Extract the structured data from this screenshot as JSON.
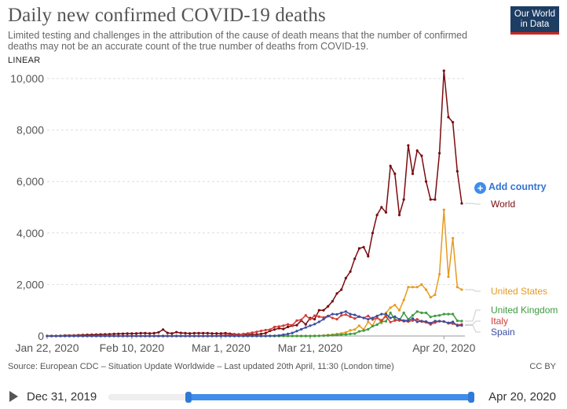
{
  "header": {
    "title": "Daily new confirmed COVID-19 deaths",
    "subtitle": "Limited testing and challenges in the attribution of the cause of death means that the number of confirmed deaths may not be an accurate count of the true number of deaths from COVID-19.",
    "scale_toggle": "LINEAR",
    "logo_line1": "Our World",
    "logo_line2": "in Data"
  },
  "controls": {
    "add_country": "Add country",
    "add_icon": "plus-circle-icon",
    "timeline_start": "Dec 31, 2019",
    "timeline_end": "Apr 20, 2020",
    "timeline_range_start": 0.22,
    "timeline_range_end": 1.0
  },
  "footer": {
    "source": "Source: European CDC – Situation Update Worldwide – Last updated 20th April, 11:30 (London time)",
    "license": "CC BY"
  },
  "chart_data": {
    "type": "line",
    "x_start": "2020-01-22",
    "x_end": "2020-04-20",
    "x_ticks": [
      "Jan 22, 2020",
      "Feb 10, 2020",
      "Mar 1, 2020",
      "Mar 21, 2020",
      "Apr 20, 2020"
    ],
    "x_tick_days": [
      0,
      19,
      39,
      59,
      89
    ],
    "ylim": [
      0,
      10500
    ],
    "y_ticks": [
      0,
      2000,
      4000,
      6000,
      8000,
      10000
    ],
    "y_tick_labels": [
      "0",
      "2,000",
      "4,000",
      "6,000",
      "8,000",
      "10,000"
    ],
    "grid": "horizontal dashed",
    "legend": "right, labels at line ends",
    "series": [
      {
        "name": "World",
        "color": "#7a0b0f",
        "values": [
          0,
          0,
          0,
          10,
          20,
          20,
          25,
          30,
          40,
          45,
          50,
          55,
          60,
          65,
          70,
          80,
          85,
          90,
          95,
          95,
          100,
          110,
          110,
          100,
          110,
          140,
          250,
          120,
          100,
          150,
          120,
          110,
          100,
          110,
          110,
          110,
          110,
          100,
          100,
          100,
          110,
          90,
          70,
          60,
          60,
          50,
          60,
          60,
          80,
          110,
          200,
          250,
          300,
          270,
          350,
          400,
          420,
          600,
          450,
          700,
          650,
          1000,
          1000,
          1150,
          1350,
          1650,
          1800,
          2250,
          2500,
          3000,
          3400,
          3450,
          3100,
          4000,
          4700,
          5000,
          4800,
          6600,
          6300,
          4700,
          5300,
          7400,
          6300,
          7200,
          7000,
          6000,
          5300,
          5300,
          7100,
          10300,
          8500,
          8300,
          6400,
          5150
        ]
      },
      {
        "name": "United States",
        "color": "#e69b21",
        "values": [
          0,
          0,
          0,
          0,
          0,
          0,
          0,
          0,
          0,
          0,
          0,
          0,
          0,
          0,
          0,
          0,
          0,
          0,
          0,
          0,
          0,
          0,
          0,
          0,
          0,
          0,
          0,
          0,
          0,
          0,
          0,
          0,
          0,
          0,
          0,
          0,
          0,
          0,
          0,
          0,
          0,
          0,
          0,
          0,
          0,
          0,
          0,
          0,
          0,
          0,
          0,
          0,
          0,
          0,
          0,
          0,
          0,
          0,
          0,
          0,
          10,
          10,
          20,
          40,
          50,
          80,
          100,
          140,
          220,
          250,
          400,
          250,
          550,
          400,
          750,
          500,
          900,
          1100,
          1200,
          1000,
          1400,
          1900,
          1900,
          1900,
          2000,
          1800,
          1500,
          1600,
          2400,
          4900,
          2300,
          3800,
          1900,
          1800
        ]
      },
      {
        "name": "United Kingdom",
        "color": "#3c9c3f",
        "values": [
          0,
          0,
          0,
          0,
          0,
          0,
          0,
          0,
          0,
          0,
          0,
          0,
          0,
          0,
          0,
          0,
          0,
          0,
          0,
          0,
          0,
          0,
          0,
          0,
          0,
          0,
          0,
          0,
          0,
          0,
          0,
          0,
          0,
          0,
          0,
          0,
          0,
          0,
          0,
          0,
          0,
          0,
          0,
          0,
          0,
          0,
          0,
          0,
          0,
          0,
          0,
          0,
          0,
          0,
          0,
          0,
          0,
          0,
          0,
          0,
          0,
          5,
          10,
          20,
          30,
          40,
          50,
          60,
          80,
          90,
          180,
          210,
          260,
          380,
          440,
          560,
          570,
          900,
          650,
          600,
          900,
          650,
          800,
          950,
          900,
          900,
          740,
          780,
          800,
          850,
          850,
          850,
          590,
          580
        ]
      },
      {
        "name": "Italy",
        "color": "#d23b36",
        "values": [
          0,
          0,
          0,
          0,
          0,
          0,
          0,
          0,
          0,
          0,
          0,
          0,
          0,
          0,
          0,
          0,
          0,
          0,
          0,
          0,
          0,
          0,
          0,
          0,
          0,
          0,
          0,
          0,
          0,
          0,
          0,
          0,
          0,
          0,
          0,
          0,
          0,
          5,
          10,
          20,
          30,
          40,
          50,
          40,
          80,
          100,
          130,
          160,
          200,
          230,
          250,
          350,
          370,
          400,
          450,
          420,
          600,
          630,
          800,
          650,
          790,
          750,
          720,
          780,
          700,
          650,
          800,
          830,
          750,
          680,
          750,
          700,
          780,
          640,
          700,
          610,
          760,
          540,
          600,
          620,
          570,
          560,
          600,
          650,
          560,
          530,
          450,
          520,
          580,
          560,
          490,
          480,
          430,
          450
        ]
      },
      {
        "name": "Spain",
        "color": "#3c4ea0",
        "values": [
          0,
          0,
          0,
          0,
          0,
          0,
          0,
          0,
          0,
          0,
          0,
          0,
          0,
          0,
          0,
          0,
          0,
          0,
          0,
          0,
          0,
          0,
          0,
          0,
          0,
          0,
          0,
          0,
          0,
          0,
          0,
          0,
          0,
          0,
          0,
          0,
          0,
          0,
          0,
          0,
          0,
          0,
          0,
          0,
          0,
          0,
          0,
          0,
          0,
          0,
          5,
          10,
          20,
          50,
          80,
          120,
          190,
          260,
          330,
          400,
          460,
          550,
          650,
          770,
          850,
          840,
          900,
          950,
          850,
          820,
          750,
          700,
          650,
          700,
          780,
          850,
          850,
          700,
          750,
          650,
          600,
          600,
          680,
          550,
          580,
          560,
          500,
          580,
          570,
          560,
          510,
          550,
          400,
          410
        ]
      }
    ]
  }
}
